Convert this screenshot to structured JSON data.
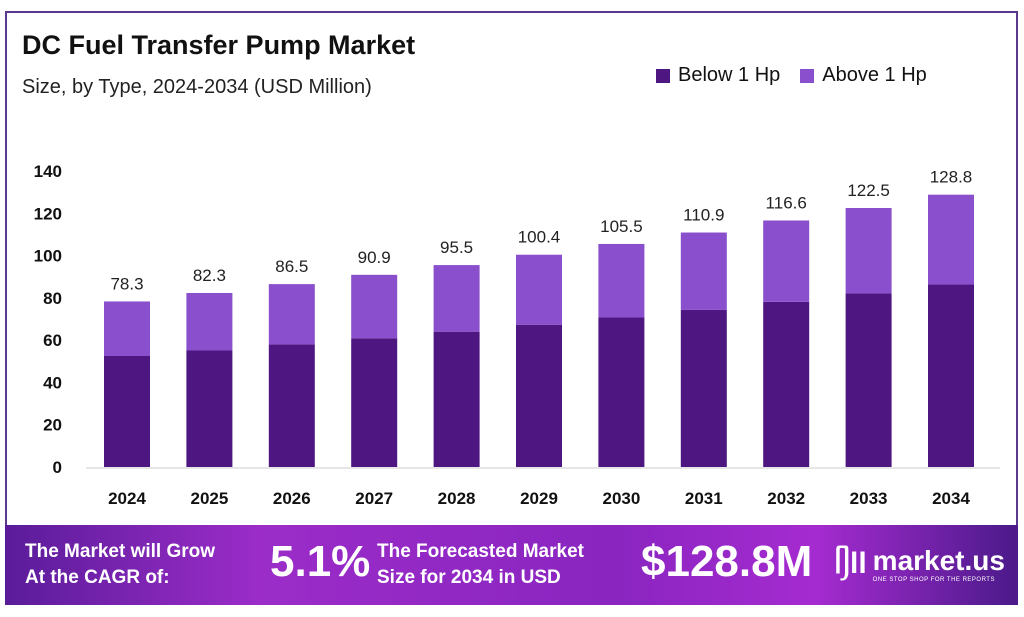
{
  "chart_data": {
    "type": "bar",
    "stacked": true,
    "title": "DC Fuel Transfer Pump Market",
    "subtitle": "Size, by Type, 2024-2034 (USD Million)",
    "categories": [
      "2024",
      "2025",
      "2026",
      "2027",
      "2028",
      "2029",
      "2030",
      "2031",
      "2032",
      "2033",
      "2034"
    ],
    "series": [
      {
        "name": "Below 1 Hp",
        "color": "#4e1681",
        "values": [
          52.5,
          55.1,
          58.0,
          60.9,
          64.0,
          67.3,
          70.7,
          74.3,
          78.1,
          82.1,
          86.3
        ]
      },
      {
        "name": "Above 1 Hp",
        "color": "#8a4fcc",
        "values": [
          25.8,
          27.2,
          28.5,
          30.0,
          31.5,
          33.1,
          34.8,
          36.6,
          38.5,
          40.4,
          42.5
        ]
      }
    ],
    "totals": [
      "78.3",
      "82.3",
      "86.5",
      "90.9",
      "95.5",
      "100.4",
      "105.5",
      "110.9",
      "116.6",
      "122.5",
      "128.8"
    ],
    "yticks": [
      "0",
      "20",
      "40",
      "60",
      "80",
      "100",
      "120",
      "140"
    ],
    "ylim": [
      0,
      140
    ],
    "grid": false,
    "legend_position": "top-right"
  },
  "footer": {
    "cagr_label_1": "The Market will Grow",
    "cagr_label_2": "At the CAGR of:",
    "cagr_value": "5.1%",
    "forecast_label_1": "The Forecasted Market",
    "forecast_label_2": "Size for 2034 in USD",
    "forecast_value": "$128.8M",
    "logo_name": "market.us",
    "logo_tagline": "ONE STOP SHOP FOR THE REPORTS"
  }
}
